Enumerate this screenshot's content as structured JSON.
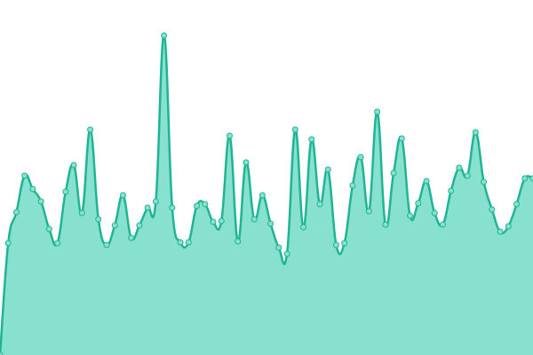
{
  "chart_data": {
    "type": "area",
    "values": [
      0,
      126,
      161,
      202,
      187,
      173,
      142,
      126,
      184,
      214,
      160,
      254,
      153,
      124,
      146,
      180,
      132,
      146,
      166,
      173,
      360,
      166,
      127,
      127,
      168,
      170,
      150,
      151,
      247,
      128,
      217,
      153,
      180,
      148,
      121,
      114,
      254,
      144,
      243,
      170,
      209,
      124,
      126,
      191,
      223,
      162,
      274,
      147,
      205,
      244,
      157,
      171,
      196,
      160,
      147,
      185,
      211,
      202,
      251,
      195,
      164,
      139,
      145,
      170,
      199,
      199
    ],
    "ylim": [
      0,
      400
    ],
    "color": "#1fb594",
    "fill": "#88e0cf"
  }
}
